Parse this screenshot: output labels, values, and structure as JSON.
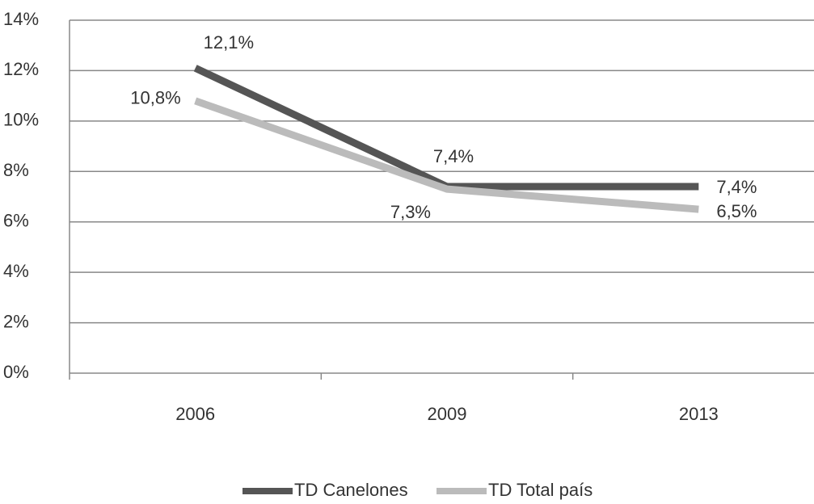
{
  "chart_data": {
    "type": "line",
    "categories": [
      "2006",
      "2009",
      "2013"
    ],
    "series": [
      {
        "name": "TD Canelones",
        "color": "#555555",
        "values": [
          12.1,
          7.4,
          7.4
        ],
        "value_labels": [
          "12,1%",
          "7,4%",
          "7,4%"
        ]
      },
      {
        "name": "TD Total país",
        "color": "#bbbbbb",
        "values": [
          10.8,
          7.3,
          6.5
        ],
        "value_labels": [
          "10,8%",
          "7,3%",
          "6,5%"
        ]
      }
    ],
    "ylim": [
      0,
      14
    ],
    "yticks": [
      {
        "value": 0,
        "label": "0%"
      },
      {
        "value": 2,
        "label": "2%"
      },
      {
        "value": 4,
        "label": "4%"
      },
      {
        "value": 6,
        "label": "6%"
      },
      {
        "value": 8,
        "label": "8%"
      },
      {
        "value": 10,
        "label": "10%"
      },
      {
        "value": 12,
        "label": "12%"
      },
      {
        "value": 14,
        "label": "14%"
      }
    ],
    "grid": true,
    "legend": "bottom"
  }
}
